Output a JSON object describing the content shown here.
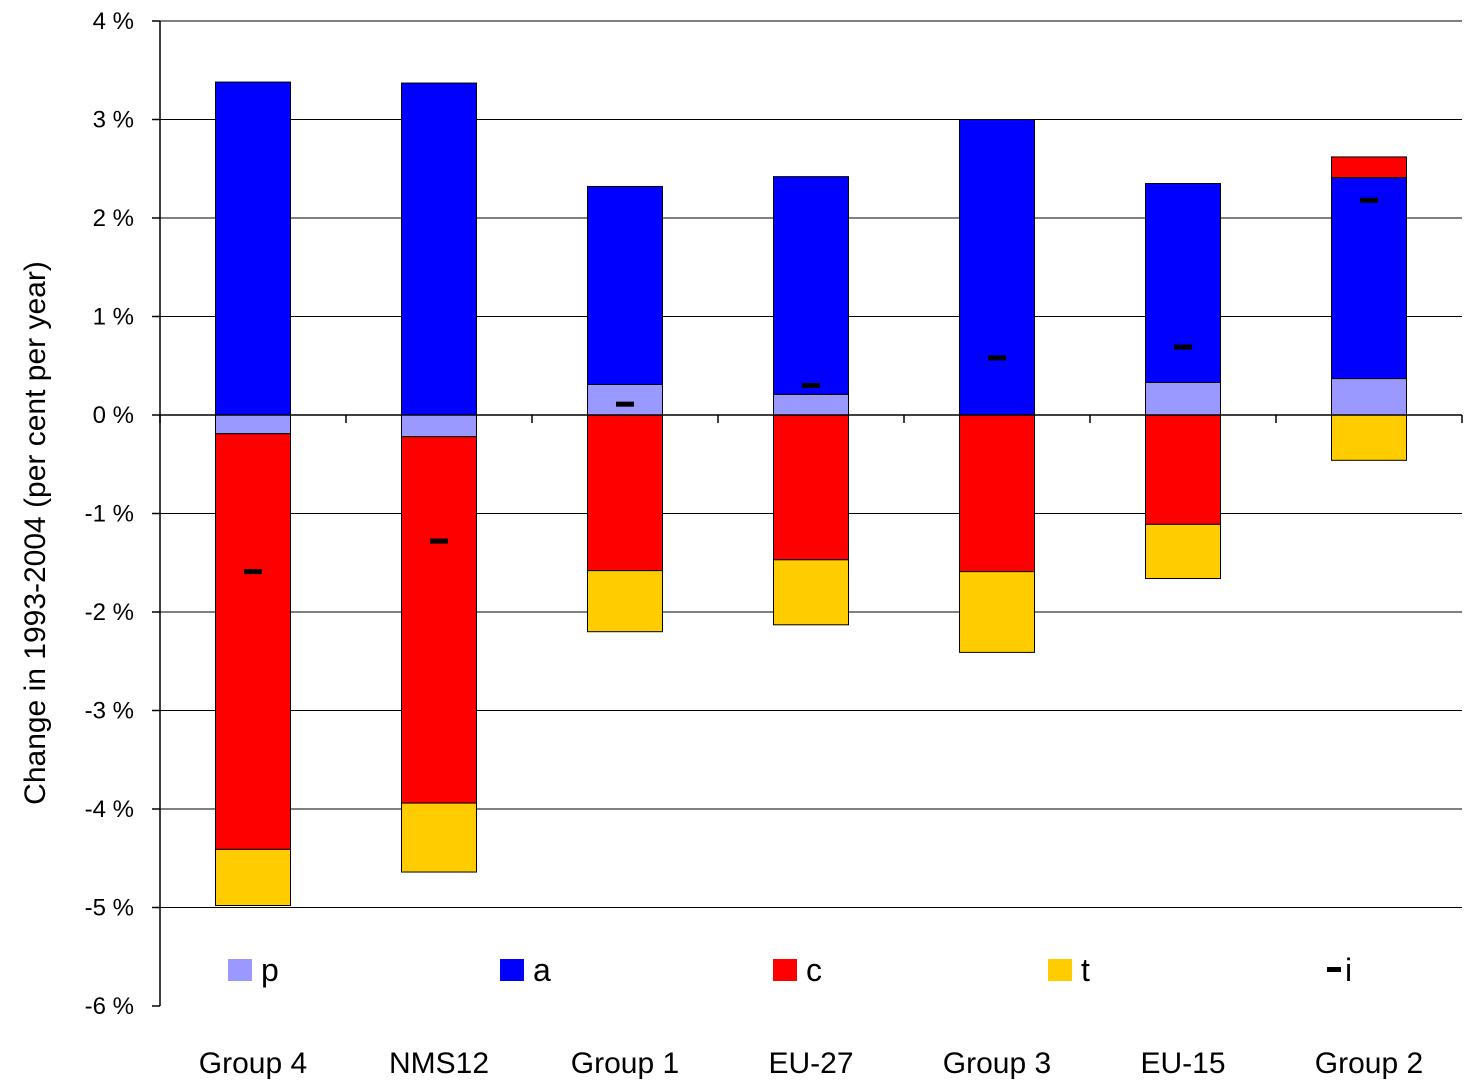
{
  "chart_data": {
    "type": "bar",
    "stacked": true,
    "title": "",
    "xlabel": "",
    "ylabel": "Change in 1993-2004 (per cent per year)",
    "ylim": [
      -6,
      4
    ],
    "yticks": [
      4,
      3,
      2,
      1,
      0,
      -1,
      -2,
      -3,
      -4,
      -5,
      -6
    ],
    "ytick_labels": [
      "4 %",
      "3 %",
      "2 %",
      "1 %",
      "0 %",
      "-1 %",
      "-2 %",
      "-3 %",
      "-4 %",
      "-5 %",
      "-6 %"
    ],
    "grid": "horizontal",
    "legend_position": "bottom-inside",
    "categories": [
      "Group 4",
      "NMS12",
      "Group 1",
      "EU-27",
      "Group 3",
      "EU-15",
      "Group 2"
    ],
    "series": [
      {
        "name": "p",
        "kind": "bar",
        "color": "#9999ff",
        "values": [
          -0.19,
          -0.22,
          0.31,
          0.21,
          0.0,
          0.33,
          0.37
        ]
      },
      {
        "name": "a",
        "kind": "bar",
        "color": "#0000ff",
        "values": [
          3.38,
          3.37,
          2.01,
          2.21,
          3.0,
          2.02,
          2.04
        ]
      },
      {
        "name": "c",
        "kind": "bar",
        "color": "#ff0000",
        "values": [
          -4.22,
          -3.72,
          -1.58,
          -1.47,
          -1.59,
          -1.11,
          0.21
        ]
      },
      {
        "name": "t",
        "kind": "bar",
        "color": "#ffcc00",
        "values": [
          -0.57,
          -0.7,
          -0.62,
          -0.66,
          -0.82,
          -0.55,
          -0.46
        ]
      },
      {
        "name": "i",
        "kind": "marker",
        "color": "#000000",
        "values": [
          -1.59,
          -1.28,
          0.11,
          0.3,
          0.58,
          0.69,
          2.18
        ]
      }
    ]
  }
}
